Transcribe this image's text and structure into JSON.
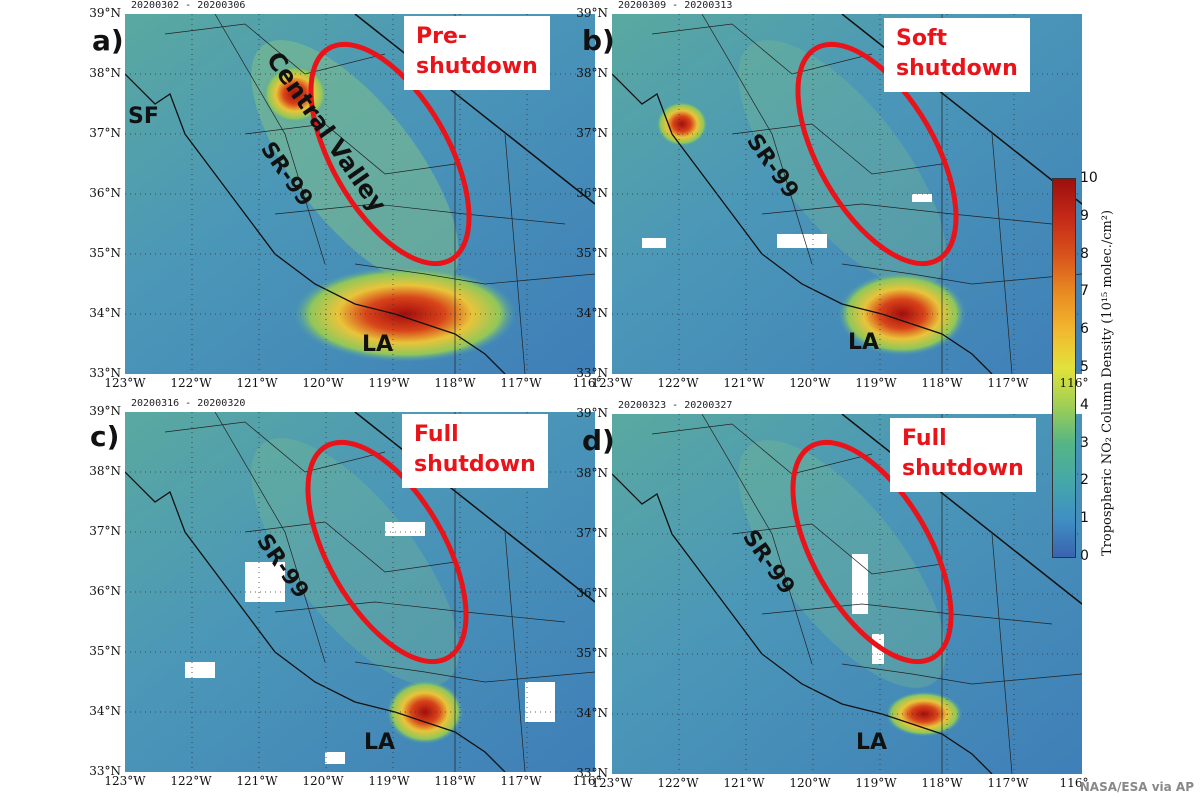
{
  "panels": [
    {
      "letter": "a)",
      "dates": "20200302 - 20200306",
      "phase": "Pre-\nshutdown",
      "labels": {
        "sf": "SF",
        "cv": "Central Valley",
        "sr": "SR-99",
        "la": "LA"
      }
    },
    {
      "letter": "b)",
      "dates": "20200309 - 20200313",
      "phase": "Soft\nshutdown",
      "labels": {
        "sr": "SR-99",
        "la": "LA"
      }
    },
    {
      "letter": "c)",
      "dates": "20200316 - 20200320",
      "phase": "Full\nshutdown",
      "labels": {
        "sr": "SR-99",
        "la": "LA"
      }
    },
    {
      "letter": "d)",
      "dates": "20200323 - 20200327",
      "phase": "Full\nshutdown",
      "labels": {
        "sr": "SR-99",
        "la": "LA"
      }
    }
  ],
  "lat_ticks": [
    "39°N",
    "38°N",
    "37°N",
    "36°N",
    "35°N",
    "34°N",
    "33°N"
  ],
  "lon_ticks": [
    "123°W",
    "122°W",
    "121°W",
    "120°W",
    "119°W",
    "118°W",
    "117°W",
    "116°"
  ],
  "colorbar": {
    "title": "Tropospheric NO₂ Column Density (10¹⁵ molec./cm²)",
    "ticks": [
      "10",
      "9",
      "8",
      "7",
      "6",
      "5",
      "4",
      "3",
      "2",
      "1",
      "0"
    ]
  },
  "credit": "NASA/ESA via AP",
  "colors": {
    "ellipse": "#e8141a",
    "phase_text": "#e8141a",
    "hotspot": "#b01010"
  }
}
